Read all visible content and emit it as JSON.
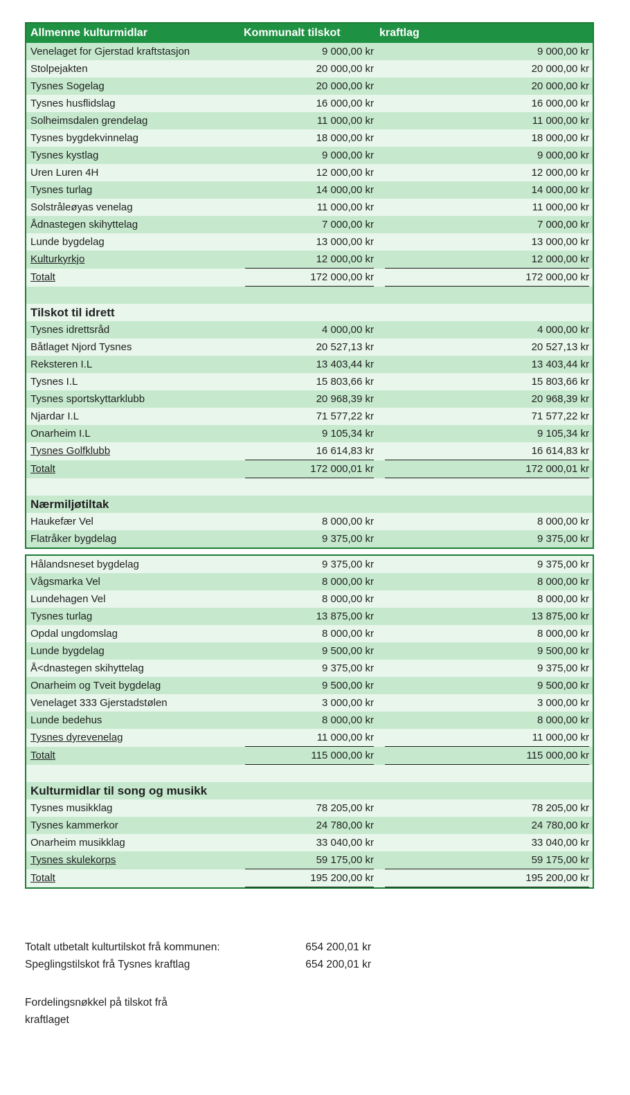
{
  "colors": {
    "header_bg": "#1f9143",
    "row_light": "#c6e9ce",
    "row_pale": "#e9f6ec",
    "table_border": "#1a7c34",
    "underline": "#1c1c1c"
  },
  "header": {
    "col1": "Allmenne kulturmidlar",
    "col2": "Kommunalt tilskot",
    "col3": "kraftlag"
  },
  "rows": [
    {
      "b": 1,
      "t": "d",
      "label": "Venelaget for Gjerstad kraftstasjon",
      "v1": "9 000,00 kr",
      "v2": "9 000,00 kr"
    },
    {
      "b": 1,
      "t": "d",
      "label": "Stolpejakten",
      "v1": "20 000,00 kr",
      "v2": "20 000,00 kr"
    },
    {
      "b": 1,
      "t": "d",
      "label": "Tysnes Sogelag",
      "v1": "20 000,00 kr",
      "v2": "20 000,00 kr"
    },
    {
      "b": 1,
      "t": "d",
      "label": "Tysnes husflidslag",
      "v1": "16 000,00 kr",
      "v2": "16 000,00 kr"
    },
    {
      "b": 1,
      "t": "d",
      "label": "Solheimsdalen grendelag",
      "v1": "11 000,00 kr",
      "v2": "11 000,00 kr"
    },
    {
      "b": 1,
      "t": "d",
      "label": "Tysnes bygdekvinnelag",
      "v1": "18 000,00 kr",
      "v2": "18 000,00 kr"
    },
    {
      "b": 1,
      "t": "d",
      "label": "Tysnes kystlag",
      "v1": "9 000,00 kr",
      "v2": "9 000,00 kr"
    },
    {
      "b": 1,
      "t": "d",
      "label": "Uren Luren 4H",
      "v1": "12 000,00 kr",
      "v2": "12 000,00 kr"
    },
    {
      "b": 1,
      "t": "d",
      "label": "Tysnes turlag",
      "v1": "14 000,00 kr",
      "v2": "14 000,00 kr"
    },
    {
      "b": 1,
      "t": "d",
      "label": "Solstråleøyas venelag",
      "v1": "11 000,00 kr",
      "v2": "11 000,00 kr"
    },
    {
      "b": 1,
      "t": "d",
      "label": "Ådnastegen skihyttelag",
      "v1": "7 000,00 kr",
      "v2": "7 000,00 kr"
    },
    {
      "b": 1,
      "t": "d",
      "label": "Lunde bygdelag",
      "v1": "13 000,00 kr",
      "v2": "13 000,00 kr"
    },
    {
      "b": 1,
      "t": "d",
      "u": true,
      "label": "Kulturkyrkjo",
      "v1": "12 000,00 kr",
      "v2": "12 000,00 kr"
    },
    {
      "b": 1,
      "t": "t",
      "u": true,
      "label": "Totalt",
      "v1": "172 000,00 kr",
      "v2": "172 000,00 kr"
    },
    {
      "b": 1,
      "t": "sp"
    },
    {
      "b": 1,
      "t": "s",
      "label": "Tilskot til idrett"
    },
    {
      "b": 1,
      "t": "d",
      "label": "Tysnes idrettsråd",
      "v1": "4 000,00 kr",
      "v2": "4 000,00 kr"
    },
    {
      "b": 1,
      "t": "d",
      "label": "Båtlaget Njord Tysnes",
      "v1": "20 527,13 kr",
      "v2": "20 527,13 kr"
    },
    {
      "b": 1,
      "t": "d",
      "label": "Reksteren I.L",
      "v1": "13 403,44 kr",
      "v2": "13 403,44 kr"
    },
    {
      "b": 1,
      "t": "d",
      "label": "Tysnes I.L",
      "v1": "15 803,66 kr",
      "v2": "15 803,66 kr"
    },
    {
      "b": 1,
      "t": "d",
      "label": "Tysnes sportskyttarklubb",
      "v1": "20 968,39 kr",
      "v2": "20 968,39 kr"
    },
    {
      "b": 1,
      "t": "d",
      "label": "Njardar I.L",
      "v1": "71 577,22 kr",
      "v2": "71 577,22 kr"
    },
    {
      "b": 1,
      "t": "d",
      "label": "Onarheim I.L",
      "v1": "9 105,34 kr",
      "v2": "9 105,34 kr"
    },
    {
      "b": 1,
      "t": "d",
      "u": true,
      "label": "Tysnes Golfklubb",
      "v1": "16 614,83 kr",
      "v2": "16 614,83 kr"
    },
    {
      "b": 1,
      "t": "t",
      "u": true,
      "label": "Totalt",
      "v1": "172 000,01 kr",
      "v2": "172 000,01 kr"
    },
    {
      "b": 1,
      "t": "sp"
    },
    {
      "b": 1,
      "t": "s",
      "label": "Nærmiljøtiltak"
    },
    {
      "b": 1,
      "t": "d",
      "label": "Haukefær Vel",
      "v1": "8 000,00 kr",
      "v2": "8 000,00 kr"
    },
    {
      "b": 1,
      "t": "d",
      "label": "Flatråker bygdelag",
      "v1": "9 375,00 kr",
      "v2": "9 375,00 kr"
    },
    {
      "b": 2,
      "t": "d",
      "label": "Hålandsneset bygdelag",
      "v1": "9 375,00 kr",
      "v2": "9 375,00 kr"
    },
    {
      "b": 2,
      "t": "d",
      "label": "Vågsmarka Vel",
      "v1": "8 000,00 kr",
      "v2": "8 000,00 kr"
    },
    {
      "b": 2,
      "t": "d",
      "label": "Lundehagen Vel",
      "v1": "8 000,00 kr",
      "v2": "8 000,00 kr"
    },
    {
      "b": 2,
      "t": "d",
      "label": "Tysnes turlag",
      "v1": "13 875,00 kr",
      "v2": "13 875,00 kr"
    },
    {
      "b": 2,
      "t": "d",
      "label": "Opdal ungdomslag",
      "v1": "8 000,00 kr",
      "v2": "8 000,00 kr"
    },
    {
      "b": 2,
      "t": "d",
      "label": "Lunde bygdelag",
      "v1": "9 500,00 kr",
      "v2": "9 500,00 kr"
    },
    {
      "b": 2,
      "t": "d",
      "label": "Å<dnastegen skihyttelag",
      "v1": "9 375,00 kr",
      "v2": "9 375,00 kr"
    },
    {
      "b": 2,
      "t": "d",
      "label": "Onarheim og Tveit bygdelag",
      "v1": "9 500,00 kr",
      "v2": "9 500,00 kr"
    },
    {
      "b": 2,
      "t": "d",
      "label": "Venelaget 333 Gjerstadstølen",
      "v1": "3 000,00 kr",
      "v2": "3 000,00 kr"
    },
    {
      "b": 2,
      "t": "d",
      "label": "Lunde bedehus",
      "v1": "8 000,00 kr",
      "v2": "8 000,00 kr"
    },
    {
      "b": 2,
      "t": "d",
      "u": true,
      "label": "Tysnes dyrevenelag",
      "v1": "11 000,00 kr",
      "v2": "11 000,00 kr"
    },
    {
      "b": 2,
      "t": "t",
      "u": true,
      "label": "Totalt",
      "v1": "115 000,00 kr",
      "v2": "115 000,00 kr"
    },
    {
      "b": 2,
      "t": "sp"
    },
    {
      "b": 2,
      "t": "s",
      "label": "Kulturmidlar til song og musikk"
    },
    {
      "b": 2,
      "t": "d",
      "label": "Tysnes musikklag",
      "v1": "78 205,00 kr",
      "v2": "78 205,00 kr"
    },
    {
      "b": 2,
      "t": "d",
      "label": "Tysnes kammerkor",
      "v1": "24 780,00 kr",
      "v2": "24 780,00 kr"
    },
    {
      "b": 2,
      "t": "d",
      "label": "Onarheim musikklag",
      "v1": "33 040,00 kr",
      "v2": "33 040,00 kr"
    },
    {
      "b": 2,
      "t": "d",
      "u": true,
      "label": "Tysnes skulekorps",
      "v1": "59 175,00 kr",
      "v2": "59 175,00 kr"
    },
    {
      "b": 2,
      "t": "t",
      "u": true,
      "label": "Totalt",
      "v1": "195 200,00 kr",
      "v2": "195 200,00 kr"
    }
  ],
  "footer": {
    "total_label": "Totalt utbetalt kulturtilskot frå kommunen:",
    "total_value": "654 200,01 kr",
    "mirror_label": "Speglingstilskot frå Tysnes kraftlag",
    "mirror_value": "654 200,01 kr",
    "note": "Fordelingsnøkkel på tilskot frå kraftlaget"
  }
}
